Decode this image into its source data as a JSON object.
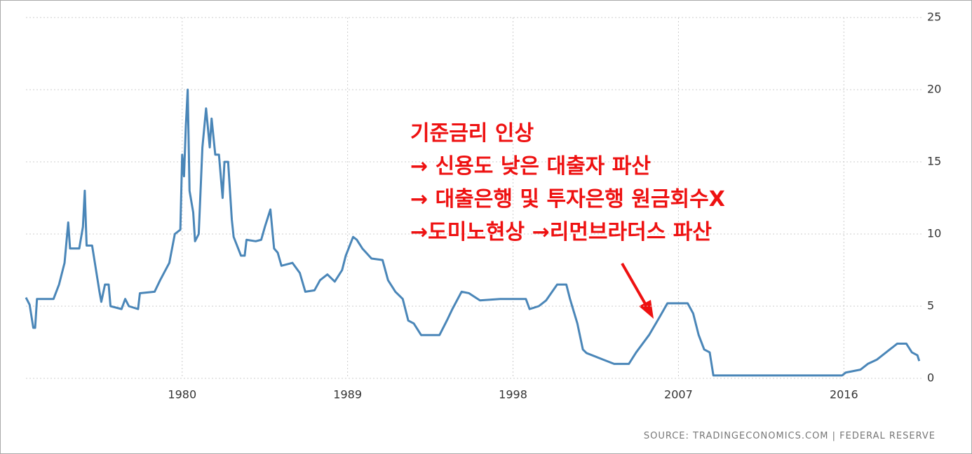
{
  "chart_data": {
    "type": "line",
    "x": [
      1971.5,
      1971.7,
      1971.9,
      1972.0,
      1972.1,
      1973.0,
      1973.3,
      1973.6,
      1973.8,
      1973.9,
      1974.4,
      1974.6,
      1974.7,
      1974.8,
      1975.1,
      1975.5,
      1975.6,
      1975.8,
      1976.0,
      1976.1,
      1976.7,
      1976.9,
      1977.1,
      1977.6,
      1977.7,
      1978.5,
      1978.8,
      1979.3,
      1979.6,
      1979.9,
      1980.0,
      1980.1,
      1980.2,
      1980.3,
      1980.4,
      1980.6,
      1980.7,
      1980.9,
      1981.1,
      1981.3,
      1981.5,
      1981.6,
      1981.8,
      1982.0,
      1982.2,
      1982.3,
      1982.5,
      1982.7,
      1982.8,
      1983.2,
      1983.4,
      1983.5,
      1984.0,
      1984.3,
      1984.5,
      1984.8,
      1985.0,
      1985.2,
      1985.4,
      1986.0,
      1986.4,
      1986.7,
      1987.2,
      1987.5,
      1987.9,
      1988.3,
      1988.7,
      1988.9,
      1989.3,
      1989.5,
      1989.8,
      1990.3,
      1990.9,
      1991.2,
      1991.6,
      1992.0,
      1992.3,
      1992.6,
      1993.0,
      1994.0,
      1994.4,
      1994.7,
      1995.2,
      1995.6,
      1996.2,
      1997.3,
      1998.7,
      1998.9,
      1999.4,
      1999.8,
      2000.4,
      2000.9,
      2001.1,
      2001.5,
      2001.8,
      2002.0,
      2002.9,
      2003.5,
      2004.3,
      2004.7,
      2005.4,
      2006.0,
      2006.4,
      2007.5,
      2007.8,
      2008.1,
      2008.4,
      2008.7,
      2008.9,
      2015.9,
      2016.1,
      2016.9,
      2017.3,
      2017.8,
      2018.4,
      2018.9,
      2019.4,
      2019.7,
      2020.0,
      2020.1
    ],
    "series": [
      {
        "color": "#4a86b8",
        "values": [
          5.6,
          5.1,
          3.5,
          3.5,
          5.5,
          5.5,
          6.5,
          8.0,
          10.8,
          9.0,
          9.0,
          10.5,
          13.0,
          9.2,
          9.2,
          6.0,
          5.3,
          6.5,
          6.5,
          5.0,
          4.8,
          5.5,
          5.0,
          4.8,
          5.9,
          6.0,
          6.8,
          8.0,
          10.0,
          10.3,
          15.5,
          14.0,
          17.5,
          20.0,
          13.0,
          11.5,
          9.5,
          10.0,
          16.0,
          18.7,
          16.0,
          18.0,
          15.5,
          15.5,
          12.5,
          15.0,
          15.0,
          11.0,
          9.8,
          8.5,
          8.5,
          9.6,
          9.5,
          9.6,
          10.5,
          11.7,
          9.0,
          8.7,
          7.8,
          8.0,
          7.3,
          6.0,
          6.1,
          6.8,
          7.2,
          6.7,
          7.5,
          8.5,
          9.8,
          9.6,
          9.0,
          8.3,
          8.2,
          6.8,
          6.0,
          5.5,
          4.0,
          3.8,
          3.0,
          3.0,
          4.0,
          4.8,
          6.0,
          5.9,
          5.4,
          5.5,
          5.5,
          4.8,
          5.0,
          5.4,
          6.5,
          6.5,
          5.5,
          3.8,
          2.0,
          1.75,
          1.3,
          1.0,
          1.0,
          1.8,
          3.0,
          4.3,
          5.2,
          5.2,
          4.5,
          3.0,
          2.0,
          1.8,
          0.2,
          0.2,
          0.4,
          0.6,
          1.0,
          1.3,
          1.9,
          2.4,
          2.4,
          1.8,
          1.6,
          1.2
        ]
      }
    ],
    "xlim": [
      1971.5,
      2020.3
    ],
    "xticks": [
      1980,
      1989,
      1998,
      2007,
      2016
    ],
    "ylim": [
      0,
      25
    ],
    "yticks": [
      0,
      5,
      10,
      15,
      20,
      25
    ],
    "grid": true,
    "annotations": [
      "기준금리 인상",
      "→ 신용도 낮은 대출자 파산",
      "→ 대출은행 및 투자은행 원금회수X",
      "→도미노현상 →리먼브라더스 파산"
    ],
    "source": "SOURCE: TRADINGECONOMICS.COM  |  FEDERAL RESERVE"
  }
}
